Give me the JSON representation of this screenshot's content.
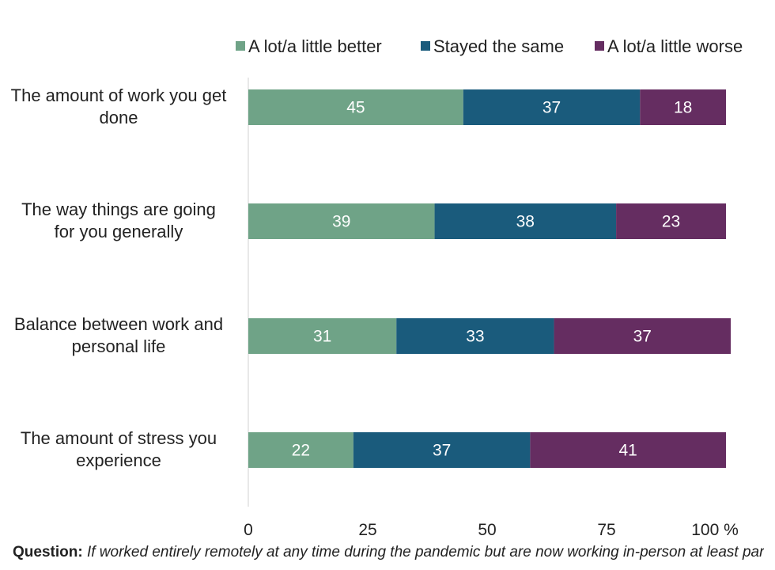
{
  "chart_data": {
    "type": "bar",
    "orientation": "horizontal",
    "stacked": true,
    "categories": [
      "The amount of work you get done",
      "The way things are going for you generally",
      "Balance between work and personal life",
      "The amount of stress you experience"
    ],
    "series": [
      {
        "name": "A lot/a little better",
        "color": "#6fa387",
        "values": [
          45,
          39,
          31,
          22
        ]
      },
      {
        "name": "Stayed the same",
        "color": "#1a5b7c",
        "values": [
          37,
          38,
          33,
          37
        ]
      },
      {
        "name": "A lot/a little worse",
        "color": "#652d61",
        "values": [
          18,
          23,
          37,
          41
        ]
      }
    ],
    "xticks": [
      "0",
      "25",
      "50",
      "75",
      "100 %"
    ],
    "xlim": [
      0,
      100
    ],
    "legend_position": "top",
    "grid": false
  },
  "footnote": {
    "label": "Question:",
    "text": "If worked entirely remotely at any time during the pandemic but are now working in-person at least partially: Would you say that each of the following matters better, stayed the same, or gotten worse"
  }
}
